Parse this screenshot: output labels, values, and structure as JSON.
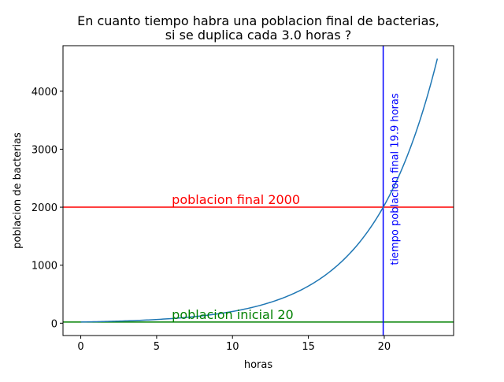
{
  "chart_data": {
    "type": "line",
    "title_lines": [
      "En cuanto tiempo habra una poblacion final de bacterias,",
      "si se duplica cada 3.0 horas ?"
    ],
    "xlabel": "horas",
    "ylabel": "poblacion de bacterias",
    "xlim": [
      -1.17,
      24.57
    ],
    "ylim": [
      -213,
      4785
    ],
    "xticks": [
      0,
      5,
      10,
      15,
      20
    ],
    "yticks": [
      0,
      1000,
      2000,
      3000,
      4000
    ],
    "grid": false,
    "legend": false,
    "series": [
      {
        "kind": "exponential",
        "initial": 20,
        "doubling_time": 3.0,
        "x_start": 0,
        "x_end": 23.5,
        "color": "#1f77b4"
      }
    ],
    "reference_lines": [
      {
        "orientation": "horizontal",
        "value": 2000,
        "color": "#ff0000",
        "label": "poblacion final 2000",
        "label_at": {
          "x": 6,
          "y": 2000
        }
      },
      {
        "orientation": "horizontal",
        "value": 20,
        "color": "#008000",
        "label": "poblacion inicial 20",
        "label_at": {
          "x": 6,
          "y": 20
        }
      },
      {
        "orientation": "vertical",
        "value": 19.93,
        "color": "#0000ff",
        "label": "tiempo poblacion final 19.9 horas",
        "label_at": {
          "x": 20.7,
          "y": 1000
        }
      }
    ]
  }
}
